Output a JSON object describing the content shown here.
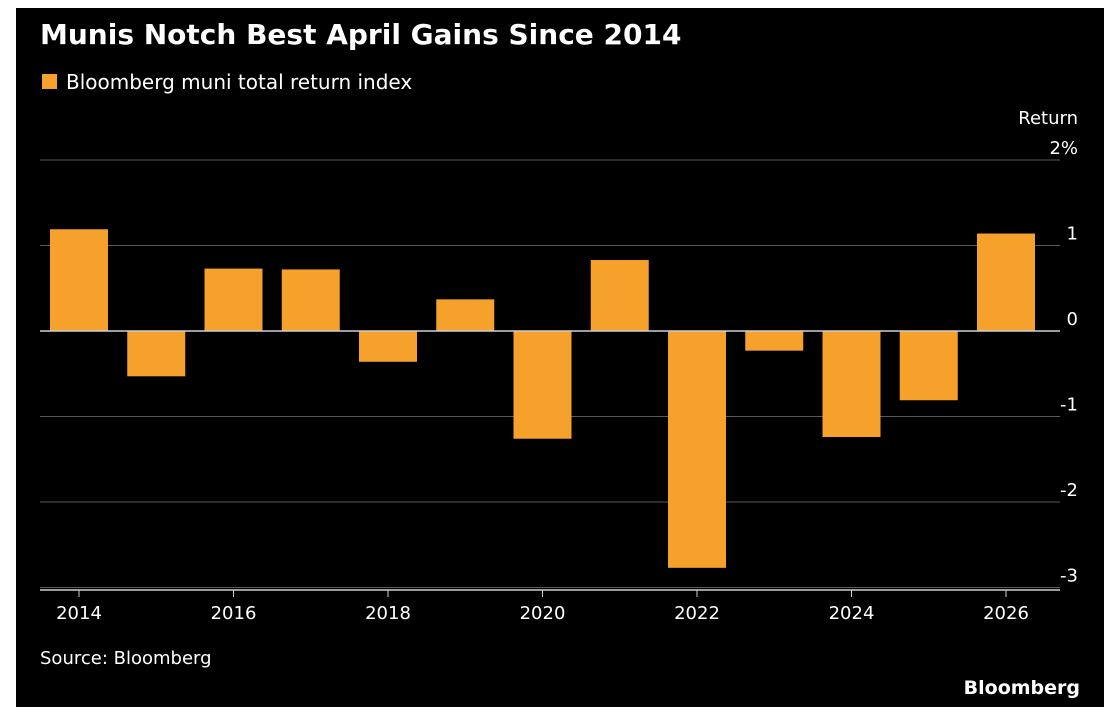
{
  "chart_data": {
    "type": "bar",
    "title": "Munis Notch Best April Gains Since 2014",
    "ylabel": "Return",
    "y_unit": "%",
    "ylim": [
      -3,
      2
    ],
    "yticks": [
      "2%",
      "1",
      "0",
      "-1",
      "-2",
      "-3"
    ],
    "x_tick_labels": [
      "2014",
      "2016",
      "2018",
      "2020",
      "2022",
      "2024",
      "2026"
    ],
    "categories": [
      2014,
      2015,
      2016,
      2017,
      2018,
      2019,
      2020,
      2021,
      2022,
      2023,
      2024,
      2025,
      2026
    ],
    "series": [
      {
        "name": "Bloomberg muni total return index",
        "values": [
          1.19,
          -0.53,
          0.73,
          0.72,
          -0.36,
          0.37,
          -1.26,
          0.83,
          -2.77,
          -0.23,
          -1.24,
          -0.81,
          1.14
        ]
      }
    ],
    "grid": true,
    "legend": "top-left",
    "bar_color": "#F5A12C",
    "gridline_color": "#595959",
    "zero_line_color": "#d0d0d0",
    "background": "#000000"
  },
  "source": "Source: Bloomberg",
  "brand": "Bloomberg"
}
